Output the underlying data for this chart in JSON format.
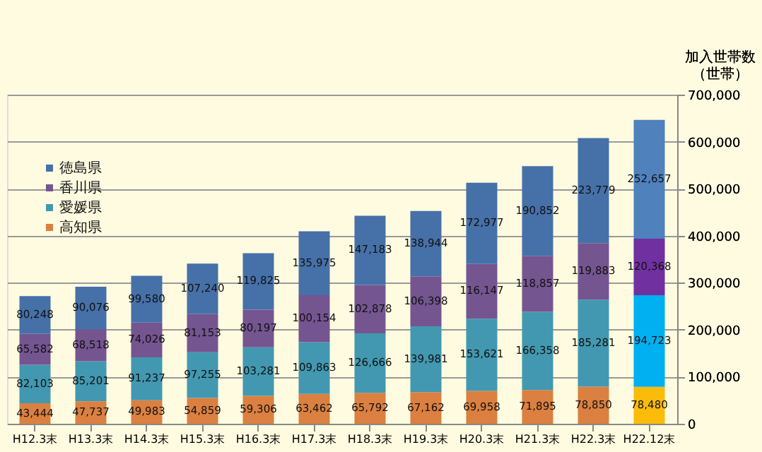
{
  "chart_data": {
    "type": "bar",
    "stacked": true,
    "ylabel": "加入世帯数（世帯）",
    "categories": [
      "H12.3末",
      "H13.3末",
      "H14.3末",
      "H15.3末",
      "H16.3末",
      "H17.3末",
      "H18.3末",
      "H19.3末",
      "H20.3末",
      "H21.3末",
      "H22.3末",
      "H22.12末"
    ],
    "series": [
      {
        "name": "高知県",
        "color": "#db8040",
        "colors": [
          "#db8040",
          "#db8040",
          "#db8040",
          "#db8040",
          "#db8040",
          "#db8040",
          "#db8040",
          "#db8040",
          "#db8040",
          "#db8040",
          "#db8040",
          "#fbbc09"
        ],
        "values": [
          43444,
          47737,
          49983,
          54859,
          59306,
          63462,
          65792,
          67162,
          69958,
          71895,
          78850,
          78480
        ],
        "value_labels": [
          "43,444",
          "47,737",
          "49,983",
          "54,859",
          "59,306",
          "63,462",
          "65,792",
          "67,162",
          "69,958",
          "71,895",
          "78,850",
          "78,480"
        ]
      },
      {
        "name": "愛媛県",
        "color": "#4298b0",
        "colors": [
          "#4298b0",
          "#4298b0",
          "#4298b0",
          "#4298b0",
          "#4298b0",
          "#4298b0",
          "#4298b0",
          "#4298b0",
          "#4298b0",
          "#4298b0",
          "#4298b0",
          "#00b0f0"
        ],
        "values": [
          82103,
          85201,
          91237,
          97255,
          103281,
          109863,
          126666,
          139981,
          153621,
          166358,
          185281,
          194723
        ],
        "value_labels": [
          "82,103",
          "85,201",
          "91,237",
          "97,255",
          "103,281",
          "109,863",
          "126,666",
          "139,981",
          "153,621",
          "166,358",
          "185,281",
          "194,723"
        ]
      },
      {
        "name": "香川県",
        "color": "#745590",
        "colors": [
          "#745590",
          "#745590",
          "#745590",
          "#745590",
          "#745590",
          "#745590",
          "#745590",
          "#745590",
          "#745590",
          "#745590",
          "#745590",
          "#7030a0"
        ],
        "values": [
          65582,
          68518,
          74026,
          81153,
          80197,
          100154,
          102878,
          106398,
          116147,
          118857,
          119883,
          120368
        ],
        "value_labels": [
          "65,582",
          "68,518",
          "74,026",
          "81,153",
          "80,197",
          "100,154",
          "102,878",
          "106,398",
          "116,147",
          "118,857",
          "119,883",
          "120,368"
        ]
      },
      {
        "name": "徳島県",
        "color": "#4670a8",
        "colors": [
          "#4670a8",
          "#4670a8",
          "#4670a8",
          "#4670a8",
          "#4670a8",
          "#4670a8",
          "#4670a8",
          "#4670a8",
          "#4670a8",
          "#4670a8",
          "#4670a8",
          "#4f81bd"
        ],
        "values": [
          80248,
          90076,
          99580,
          107240,
          119825,
          135975,
          147183,
          138944,
          172977,
          190852,
          223779,
          252657
        ],
        "value_labels": [
          "80,248",
          "90,076",
          "99,580",
          "107,240",
          "119,825",
          "135,975",
          "147,183",
          "138,944",
          "172,977",
          "190,852",
          "223,779",
          "252,657"
        ]
      }
    ],
    "ylim": [
      0,
      700000
    ],
    "yticks": [
      0,
      {
        "value": 100000,
        "label": "100,000"
      },
      {
        "value": 200000,
        "label": "200,000"
      },
      {
        "value": 300000,
        "label": "300,000"
      },
      {
        "value": 400000,
        "label": "400,000"
      },
      {
        "value": 500000,
        "label": "500,000"
      },
      {
        "value": 600000,
        "label": "600,000"
      },
      {
        "value": 700000,
        "label": "700,000"
      }
    ],
    "grid": "y",
    "legend": "top left"
  }
}
